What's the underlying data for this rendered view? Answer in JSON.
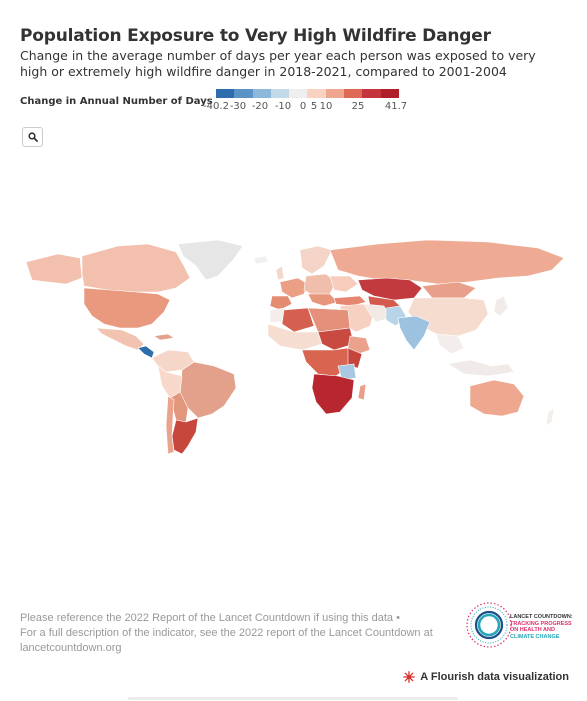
{
  "header": {
    "title": "Population Exposure to Very High Wildfire Danger",
    "subtitle": "Change in the average number of days per year each person was exposed to very high or extremely high wildfire danger in 2018-2021, compared to 2001-2004"
  },
  "legend": {
    "title": "Change in Annual Number of Days",
    "ticks": [
      "-40.2",
      "-30",
      "-20",
      "-10",
      "0",
      "5",
      "10",
      "25",
      "41.7"
    ],
    "colors": [
      "#2d6dac",
      "#5a93c6",
      "#8db8da",
      "#c2d9ea",
      "#eeeeee",
      "#f8d3c1",
      "#eea78e",
      "#de6a55",
      "#c4343c",
      "#b01e2c"
    ]
  },
  "search": {
    "icon": "search-icon"
  },
  "map": {
    "color_scale": "diverging blue-to-red",
    "regions": [
      {
        "name": "Kazakhstan",
        "color": "#c23a3d"
      },
      {
        "name": "Southern Africa",
        "color": "#b8272f"
      },
      {
        "name": "South Asia",
        "color": "#9dc2df"
      },
      {
        "name": "Central America",
        "color": "#2d6dac"
      }
    ]
  },
  "footer": {
    "line1": "Please reference the 2022 Report of the Lancet Countdown if using this data •",
    "line2": "For a full description of the indicator, see the 2022 report of the Lancet Countdown at",
    "line3": "lancetcountdown.org"
  },
  "logo": {
    "lines": [
      "LANCET COUNTDOWN:",
      "TRACKING PROGRESS",
      "ON HEALTH AND",
      "CLIMATE CHANGE"
    ]
  },
  "credit": {
    "label": "A Flourish data visualization"
  }
}
